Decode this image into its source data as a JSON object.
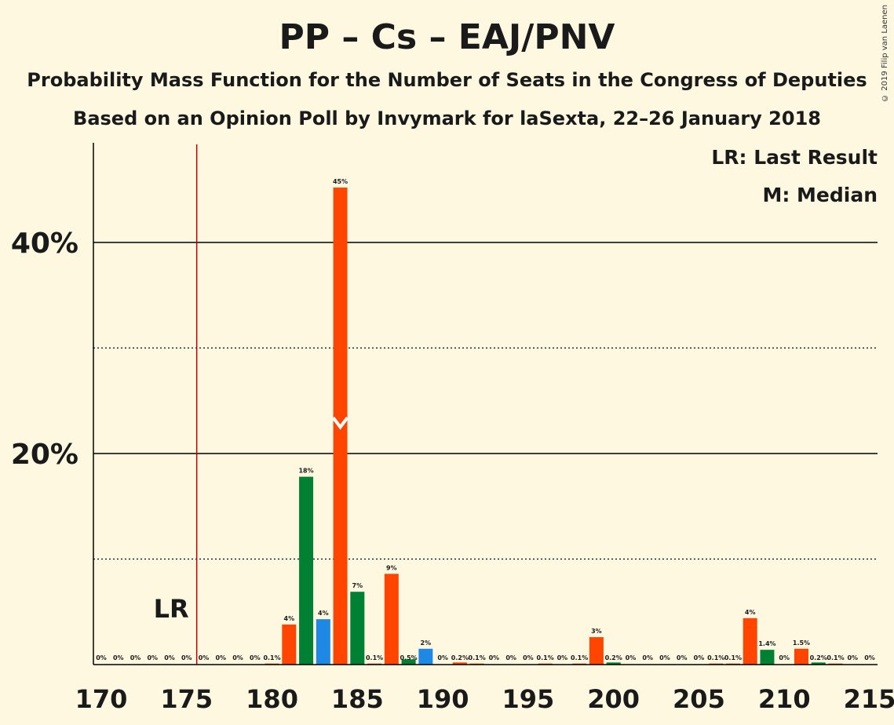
{
  "chart_data": {
    "type": "bar",
    "title": "PP – Cs – EAJ/PNV",
    "subtitle1": "Probability Mass Function for the Number of Seats in the Congress of Deputies",
    "subtitle2": "Based on an Opinion Poll by Invymark for laSexta, 22–26 January 2018",
    "copyright": "© 2019 Filip van Laenen",
    "legend": {
      "lr": "LR: Last Result",
      "m": "M: Median"
    },
    "lr_label": "LR",
    "last_result": 176,
    "median": 184,
    "xlim": [
      170,
      215
    ],
    "ylim": [
      0,
      49
    ],
    "x_ticks": [
      170,
      175,
      180,
      185,
      190,
      195,
      200,
      205,
      210,
      215
    ],
    "y_ticks_labeled": [
      {
        "value": 20,
        "label": "20%"
      },
      {
        "value": 40,
        "label": "40%"
      }
    ],
    "y_gridlines_dotted": [
      10,
      30
    ],
    "colors": {
      "orange": "#FF4500",
      "green": "#008033",
      "blue": "#1E88E5",
      "lr_line": "#BB0000",
      "grid": "#000000"
    },
    "bars": [
      {
        "seats": 170,
        "value": 0,
        "label": "0%",
        "color": "orange"
      },
      {
        "seats": 171,
        "value": 0,
        "label": "0%",
        "color": "orange"
      },
      {
        "seats": 172,
        "value": 0,
        "label": "0%",
        "color": "orange"
      },
      {
        "seats": 173,
        "value": 0,
        "label": "0%",
        "color": "orange"
      },
      {
        "seats": 174,
        "value": 0,
        "label": "0%",
        "color": "orange"
      },
      {
        "seats": 175,
        "value": 0,
        "label": "0%",
        "color": "orange"
      },
      {
        "seats": 176,
        "value": 0,
        "label": "0%",
        "color": "orange"
      },
      {
        "seats": 177,
        "value": 0,
        "label": "0%",
        "color": "orange"
      },
      {
        "seats": 178,
        "value": 0,
        "label": "0%",
        "color": "orange"
      },
      {
        "seats": 179,
        "value": 0,
        "label": "0%",
        "color": "orange"
      },
      {
        "seats": 180,
        "value": 0.1,
        "label": "0.1%",
        "color": "orange"
      },
      {
        "seats": 181,
        "value": 3.8,
        "label": "4%",
        "color": "orange"
      },
      {
        "seats": 182,
        "value": 17.8,
        "label": "18%",
        "color": "green"
      },
      {
        "seats": 183,
        "value": 4.3,
        "label": "4%",
        "color": "blue"
      },
      {
        "seats": 184,
        "value": 45.2,
        "label": "45%",
        "color": "orange"
      },
      {
        "seats": 185,
        "value": 6.9,
        "label": "7%",
        "color": "green"
      },
      {
        "seats": 186,
        "value": 0.1,
        "label": "0.1%",
        "color": "orange"
      },
      {
        "seats": 187,
        "value": 8.6,
        "label": "9%",
        "color": "orange"
      },
      {
        "seats": 188,
        "value": 0.5,
        "label": "0.5%",
        "color": "green"
      },
      {
        "seats": 189,
        "value": 1.5,
        "label": "2%",
        "color": "blue"
      },
      {
        "seats": 190,
        "value": 0,
        "label": "0%",
        "color": "orange"
      },
      {
        "seats": 191,
        "value": 0.2,
        "label": "0.2%",
        "color": "orange"
      },
      {
        "seats": 192,
        "value": 0.1,
        "label": "0.1%",
        "color": "orange"
      },
      {
        "seats": 193,
        "value": 0,
        "label": "0%",
        "color": "orange"
      },
      {
        "seats": 194,
        "value": 0,
        "label": "0%",
        "color": "orange"
      },
      {
        "seats": 195,
        "value": 0,
        "label": "0%",
        "color": "orange"
      },
      {
        "seats": 196,
        "value": 0.1,
        "label": "0.1%",
        "color": "orange"
      },
      {
        "seats": 197,
        "value": 0,
        "label": "0%",
        "color": "orange"
      },
      {
        "seats": 198,
        "value": 0.1,
        "label": "0.1%",
        "color": "orange"
      },
      {
        "seats": 199,
        "value": 2.6,
        "label": "3%",
        "color": "orange"
      },
      {
        "seats": 200,
        "value": 0.2,
        "label": "0.2%",
        "color": "green"
      },
      {
        "seats": 201,
        "value": 0,
        "label": "0%",
        "color": "orange"
      },
      {
        "seats": 202,
        "value": 0,
        "label": "0%",
        "color": "orange"
      },
      {
        "seats": 203,
        "value": 0,
        "label": "0%",
        "color": "orange"
      },
      {
        "seats": 204,
        "value": 0,
        "label": "0%",
        "color": "orange"
      },
      {
        "seats": 205,
        "value": 0,
        "label": "0%",
        "color": "orange"
      },
      {
        "seats": 206,
        "value": 0.1,
        "label": "0.1%",
        "color": "orange"
      },
      {
        "seats": 207,
        "value": 0.1,
        "label": "0.1%",
        "color": "orange"
      },
      {
        "seats": 208,
        "value": 4.4,
        "label": "4%",
        "color": "orange"
      },
      {
        "seats": 209,
        "value": 1.4,
        "label": "1.4%",
        "color": "green"
      },
      {
        "seats": 210,
        "value": 0,
        "label": "0%",
        "color": "orange"
      },
      {
        "seats": 211,
        "value": 1.5,
        "label": "1.5%",
        "color": "orange"
      },
      {
        "seats": 212,
        "value": 0.2,
        "label": "0.2%",
        "color": "green"
      },
      {
        "seats": 213,
        "value": 0.1,
        "label": "0.1%",
        "color": "orange"
      },
      {
        "seats": 214,
        "value": 0,
        "label": "0%",
        "color": "orange"
      },
      {
        "seats": 215,
        "value": 0,
        "label": "0%",
        "color": "orange"
      }
    ]
  }
}
